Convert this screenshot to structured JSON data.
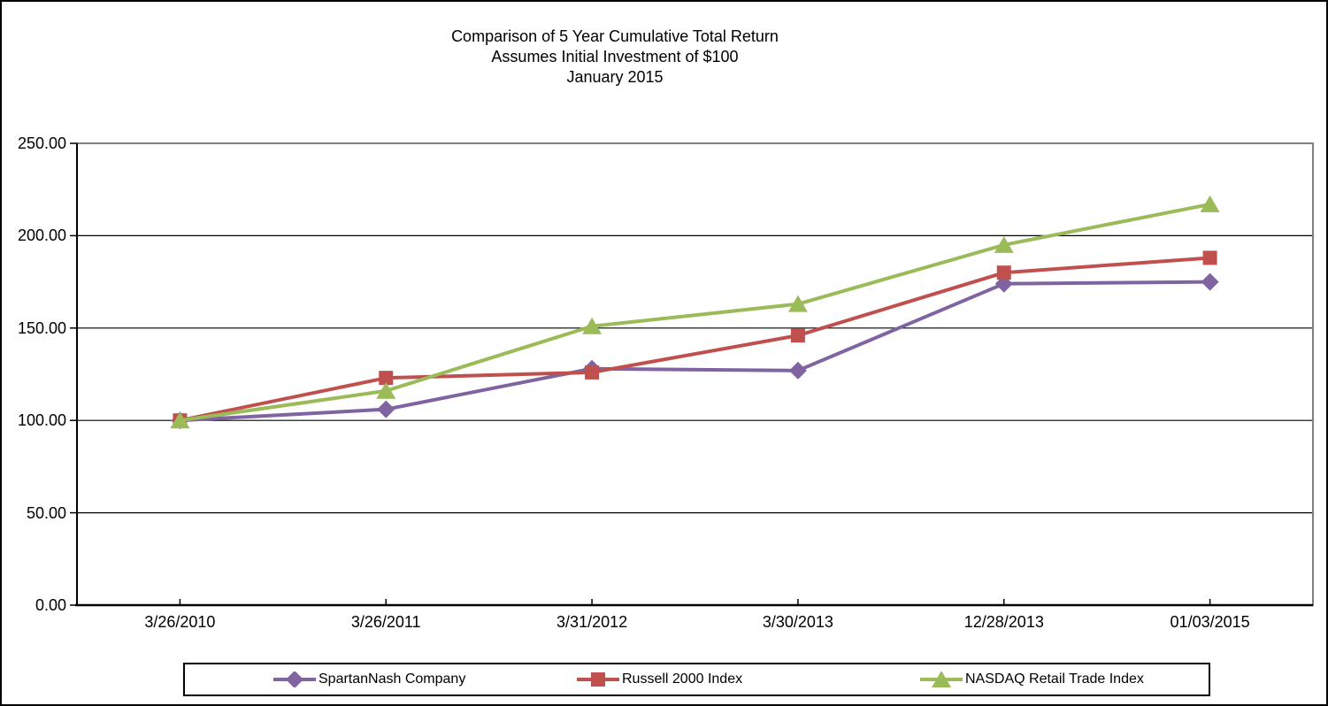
{
  "chart_data": {
    "type": "line",
    "title_lines": [
      "Comparison of 5 Year Cumulative Total Return",
      "Assumes Initial Investment of $100",
      "January 2015"
    ],
    "categories": [
      "3/26/2010",
      "3/26/2011",
      "3/31/2012",
      "3/30/2013",
      "12/28/2013",
      "01/03/2015"
    ],
    "series": [
      {
        "name": "SpartanNash Company",
        "color": "#8064A2",
        "marker": "diamond",
        "values": [
          100,
          106,
          128,
          127,
          174,
          175
        ]
      },
      {
        "name": "Russell 2000 Index",
        "color": "#C0504D",
        "marker": "square",
        "values": [
          100,
          123,
          126,
          146,
          180,
          188
        ]
      },
      {
        "name": "NASDAQ Retail Trade Index",
        "color": "#9BBB59",
        "marker": "triangle",
        "values": [
          100,
          116,
          151,
          163,
          195,
          217
        ]
      }
    ],
    "ylim": [
      0,
      250
    ],
    "y_tick_step": 50,
    "y_tick_labels": [
      "250.00",
      "200.00",
      "150.00",
      "100.00",
      "50.00",
      "0.00"
    ],
    "grid": "horizontal-on",
    "legend_position": "bottom",
    "axis_color": "#000000",
    "gridline_color": "#000000",
    "plot_border_color": "#808080",
    "background_color": "#FFFFFF"
  }
}
